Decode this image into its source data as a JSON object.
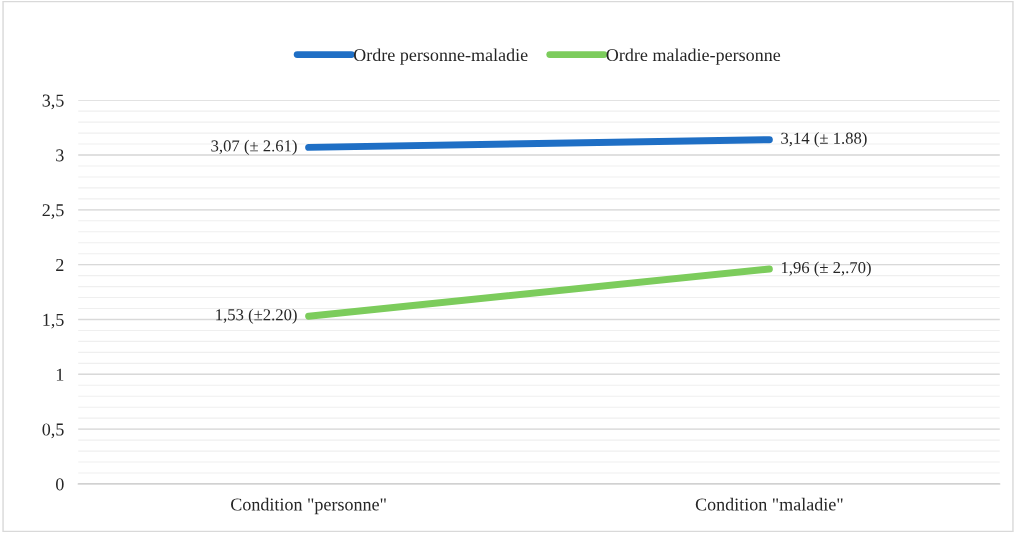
{
  "chart_data": {
    "type": "line",
    "categories": [
      "Condition \"personne\"",
      "Condition \"maladie\""
    ],
    "series": [
      {
        "name": "Ordre personne-maladie",
        "color": "#1f6fc5",
        "values": [
          3.07,
          3.14
        ],
        "value_labels": [
          "3,07 (± 2.61)",
          "3,14 (± 1.88)"
        ]
      },
      {
        "name": "Ordre maladie-personne",
        "color": "#7ccc5c",
        "values": [
          1.53,
          1.96
        ],
        "value_labels": [
          "1,53 (±2.20)",
          "1,96 (± 2,.70)"
        ]
      }
    ],
    "ylim": [
      0,
      3.5
    ],
    "yticks": [
      0,
      {
        "value": 0.5,
        "label": "0,5"
      },
      1,
      {
        "value": 1.5,
        "label": "1,5"
      },
      2,
      {
        "value": 2.5,
        "label": "2,5"
      },
      3,
      {
        "value": 3.5,
        "label": "3,5"
      }
    ],
    "grid": "y",
    "legend": "top",
    "marker": "none",
    "line_style": "solid"
  }
}
